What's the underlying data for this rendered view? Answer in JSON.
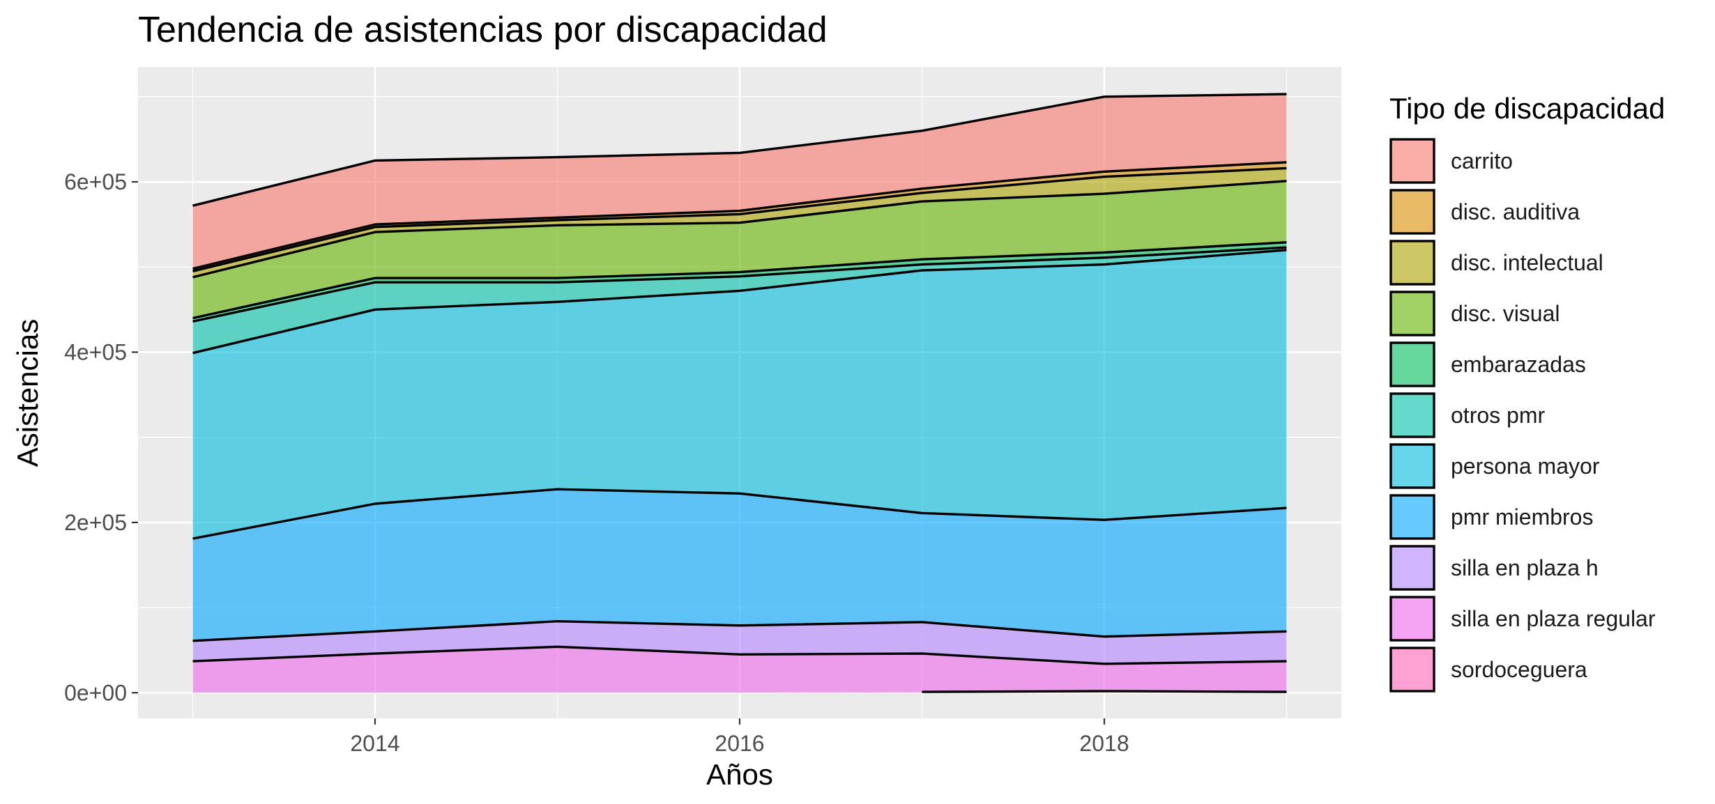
{
  "chart_data": {
    "type": "area",
    "stacked": true,
    "title": "Tendencia de asistencias por discapacidad",
    "xlabel": "Años",
    "ylabel": "Asistencias",
    "xlim": [
      2012.7,
      2019.3
    ],
    "ylim": [
      -30000,
      735000
    ],
    "x_ticks": [
      2014,
      2016,
      2018
    ],
    "x_minor_ticks": [
      2013,
      2015,
      2017,
      2019
    ],
    "y_ticks": [
      0,
      200000,
      400000,
      600000
    ],
    "y_tick_labels": [
      "0e+00",
      "2e+05",
      "4e+05",
      "6e+05"
    ],
    "y_minor_ticks": [
      100000,
      300000,
      500000,
      700000
    ],
    "grid": true,
    "legend_title": "Tipo de discapacidad",
    "legend_position": "right",
    "x": [
      2013,
      2014,
      2015,
      2016,
      2017,
      2018,
      2019
    ],
    "series": [
      {
        "name": "carrito",
        "color": "#F8766D",
        "values": [
          74000,
          75000,
          71000,
          68000,
          68000,
          88000,
          80000
        ]
      },
      {
        "name": "disc. auditiva",
        "color": "#DB8E00",
        "values": [
          3000,
          3000,
          3000,
          4000,
          5000,
          6000,
          7000
        ]
      },
      {
        "name": "disc. intelectual",
        "color": "#AEA200",
        "values": [
          7000,
          6000,
          6000,
          10000,
          10000,
          20000,
          15000
        ]
      },
      {
        "name": "disc. visual",
        "color": "#64B200",
        "values": [
          48000,
          54000,
          62000,
          58000,
          68000,
          69000,
          72000
        ]
      },
      {
        "name": "embarazadas",
        "color": "#00BD5C",
        "values": [
          4000,
          5000,
          5000,
          5000,
          6000,
          6000,
          6000
        ]
      },
      {
        "name": "otros pmr",
        "color": "#00C1A7",
        "values": [
          37000,
          32000,
          23000,
          17000,
          7000,
          8000,
          3000
        ]
      },
      {
        "name": "persona mayor",
        "color": "#00BADE",
        "values": [
          218000,
          228000,
          220000,
          238000,
          285000,
          300000,
          303000
        ]
      },
      {
        "name": "pmr miembros",
        "color": "#00A6FF",
        "values": [
          120000,
          150000,
          155000,
          155000,
          128000,
          137000,
          145000
        ]
      },
      {
        "name": "silla en plaza h",
        "color": "#B385FF",
        "values": [
          24000,
          26000,
          30000,
          34000,
          37000,
          32000,
          35000
        ]
      },
      {
        "name": "silla en plaza regular",
        "color": "#EF67EB",
        "values": [
          37000,
          46000,
          54000,
          45000,
          45000,
          32000,
          36000
        ]
      },
      {
        "name": "sordoceguera",
        "color": "#FF63B6",
        "values": [
          0,
          0,
          0,
          0,
          1000,
          2000,
          1000
        ]
      }
    ]
  }
}
